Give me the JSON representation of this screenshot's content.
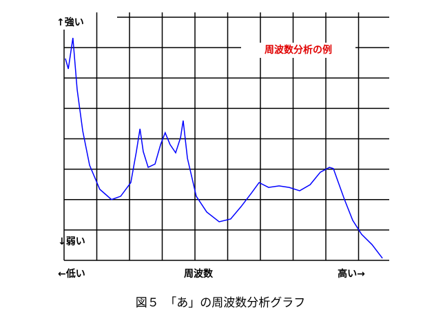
{
  "chart_data": {
    "type": "line",
    "title": "周波数分析の例",
    "caption": "図５　「あ」の周波数分析グラフ",
    "y_label_top": "↑強い",
    "y_label_bottom": "↓弱い",
    "x_label_left": "←低い",
    "x_label": "周波数",
    "x_label_right": "高い→",
    "xlim": [
      0,
      10
    ],
    "ylim": [
      0,
      8
    ],
    "xticks": [
      0,
      1,
      2,
      3,
      4,
      5,
      6,
      7,
      8,
      9
    ],
    "yticks": [
      0,
      1,
      2,
      3,
      4,
      5,
      6,
      7,
      8
    ],
    "grid": true,
    "series": [
      {
        "color": "#0000ff",
        "x": [
          0.04,
          0.13,
          0.27,
          0.4,
          0.57,
          0.78,
          1.09,
          1.45,
          1.73,
          2.04,
          2.21,
          2.32,
          2.42,
          2.57,
          2.78,
          2.95,
          3.09,
          3.24,
          3.41,
          3.56,
          3.64,
          3.77,
          4.04,
          4.36,
          4.74,
          5.09,
          5.41,
          5.73,
          5.96,
          6.25,
          6.57,
          6.88,
          7.2,
          7.52,
          7.83,
          8.11,
          8.23,
          8.36,
          8.57,
          8.82,
          9.09,
          9.41,
          9.73
        ],
        "values": [
          6.64,
          6.3,
          7.32,
          5.62,
          4.26,
          3.13,
          2.34,
          2.0,
          2.11,
          2.56,
          3.58,
          4.33,
          3.58,
          3.06,
          3.17,
          3.81,
          4.2,
          3.81,
          3.54,
          4.04,
          4.6,
          3.36,
          2.11,
          1.59,
          1.27,
          1.36,
          1.77,
          2.22,
          2.56,
          2.4,
          2.45,
          2.4,
          2.29,
          2.49,
          2.9,
          3.06,
          3.02,
          2.63,
          2.0,
          1.32,
          0.86,
          0.52,
          0.07
        ]
      }
    ]
  }
}
